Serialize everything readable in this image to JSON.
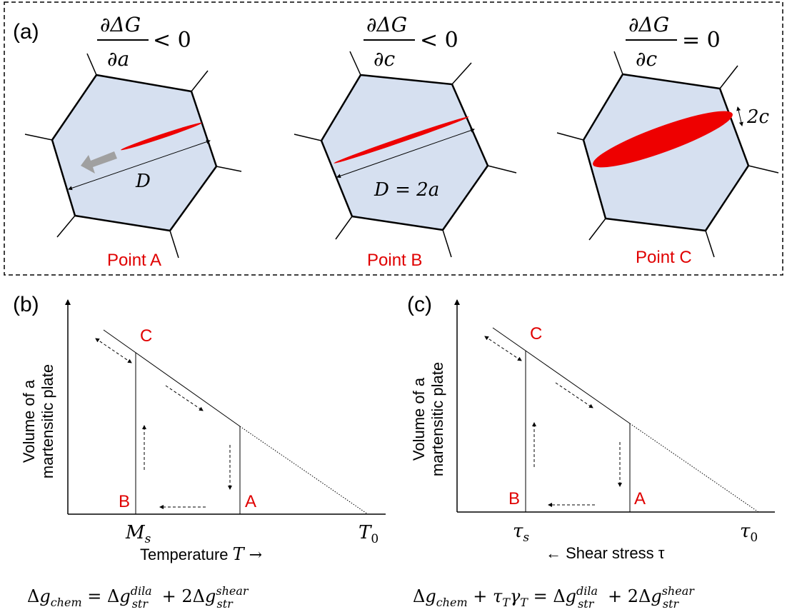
{
  "colors": {
    "grain_fill": "#d6e0f0",
    "plate_red": "#ee0000",
    "label_red": "#e00000",
    "arrow_gray": "#a0a0a0"
  },
  "panel_a": {
    "label": "(a)",
    "conditions": [
      {
        "num": "∂ΔG",
        "den": "∂a",
        "rel": "< 0"
      },
      {
        "num": "∂ΔG",
        "den": "∂c",
        "rel": "< 0"
      },
      {
        "num": "∂ΔG",
        "den": "∂c",
        "rel": "= 0"
      }
    ],
    "grain_labels": [
      "D",
      "D = 2a",
      "2c"
    ],
    "points": [
      "Point A",
      "Point B",
      "Point C"
    ]
  },
  "panel_b": {
    "label": "(b)",
    "ylabel_line1": "Volume of a",
    "ylabel_line2": "martensitic plate",
    "points": {
      "a": "A",
      "b": "B",
      "c": "C"
    },
    "tick_left": "M",
    "tick_left_sub": "s",
    "tick_right": "T",
    "tick_right_sub": "0",
    "xlabel_text": "Temperature ",
    "xlabel_var": "T",
    "xlabel_arrow": " →",
    "equation": "Δg_chem = Δg_str^dila + 2Δg_str^shear"
  },
  "panel_c": {
    "label": "(c)",
    "ylabel_line1": "Volume of a",
    "ylabel_line2": "martensitic plate",
    "points": {
      "a": "A",
      "b": "B",
      "c": "C"
    },
    "tick_left": "τ",
    "tick_left_sub": "s",
    "tick_right": "τ",
    "tick_right_sub": "0",
    "xlabel": "← Shear stress τ",
    "equation": "Δg_chem + τ_T γ_T = Δg_str^dila + 2Δg_str^shear"
  }
}
